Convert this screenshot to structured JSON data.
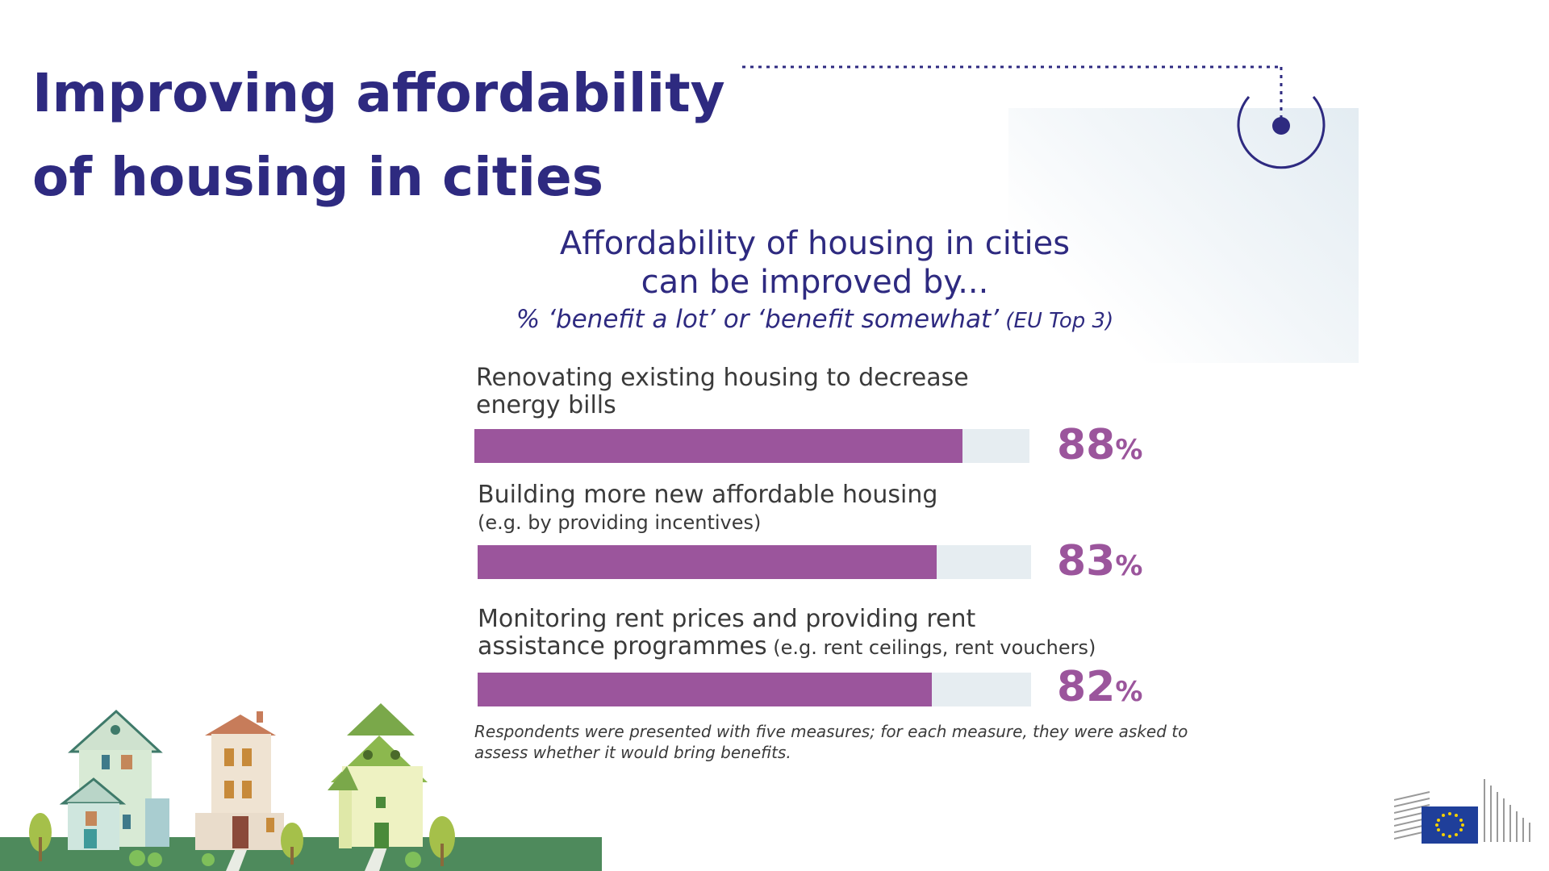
{
  "page_title": {
    "line1": "Improving affordability",
    "line2": "of housing in cities"
  },
  "chart_data": {
    "type": "bar",
    "orientation": "horizontal",
    "title_line1": "Affordability of housing in cities",
    "title_line2": "can be improved by...",
    "subtitle_italic": "% ‘benefit a lot’ or ‘benefit somewhat’",
    "subtitle_suffix": " (EU Top 3)",
    "xlim": [
      0,
      100
    ],
    "bars": [
      {
        "label_line1": "Renovating existing housing to decrease",
        "label_line2": "energy bills",
        "label_note": "",
        "value": 88,
        "value_number": "88",
        "value_sign": "%"
      },
      {
        "label_line1": "Building more new affordable housing",
        "label_line2": "",
        "label_note": "(e.g. by providing incentives)",
        "value": 83,
        "value_number": "83",
        "value_sign": "%"
      },
      {
        "label_line1": "Monitoring rent prices and providing rent",
        "label_line2": "assistance programmes",
        "label_note": " (e.g. rent ceilings, rent vouchers)",
        "value": 82,
        "value_number": "82",
        "value_sign": "%"
      }
    ],
    "footnote_line1": "Respondents were presented with five measures; for each measure, they were asked to",
    "footnote_line2": "assess whether it would bring benefits.",
    "bar_color": "#9b559c",
    "track_color": "#e6edf1"
  },
  "colors": {
    "title": "#2e2a80",
    "accent": "#9b559c",
    "ground": "#4e8a5c"
  },
  "icons": [
    "location-pin-icon",
    "houses-illustration",
    "european-commission-logo"
  ]
}
